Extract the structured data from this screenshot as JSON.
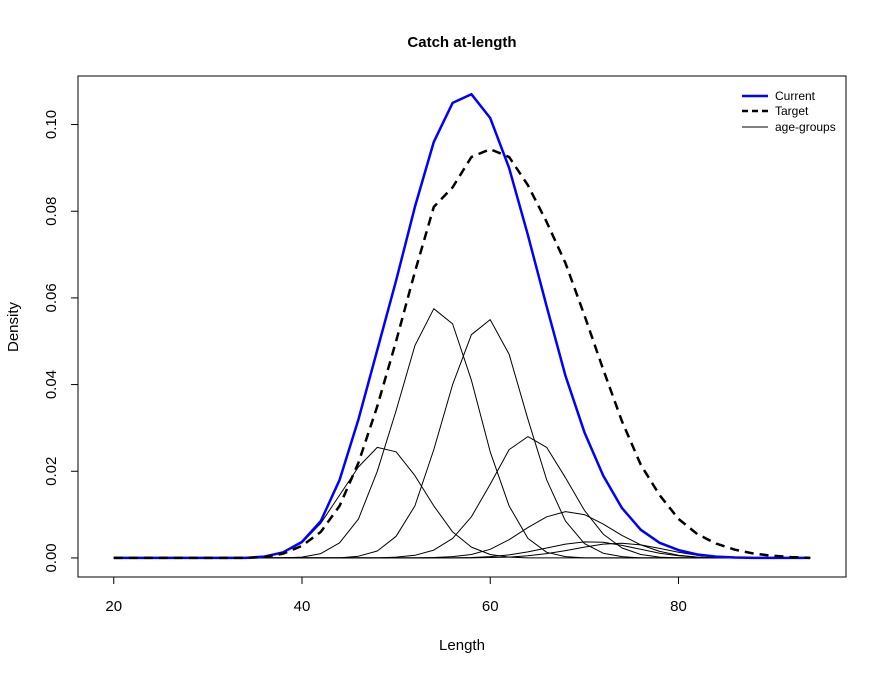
{
  "chart_data": {
    "type": "line",
    "title": "Catch at-length",
    "xlabel": "Length",
    "ylabel": "Density",
    "xlim": [
      16.2,
      97.8
    ],
    "ylim": [
      -0.0044,
      0.1112
    ],
    "x_ticks": [
      20,
      40,
      60,
      80
    ],
    "x_tick_labels": [
      "20",
      "40",
      "60",
      "80"
    ],
    "y_ticks": [
      0.0,
      0.02,
      0.04,
      0.06,
      0.08,
      0.1
    ],
    "y_tick_labels": [
      "0.00",
      "0.02",
      "0.04",
      "0.06",
      "0.08",
      "0.10"
    ],
    "grid": false,
    "legend_position": "top-right",
    "legend": [
      {
        "label": "Current",
        "color": "#0000ff",
        "style": "solid",
        "weight": "thick"
      },
      {
        "label": "Target",
        "color": "#000000",
        "style": "dashed",
        "weight": "thick"
      },
      {
        "label": "age-groups",
        "color": "#000000",
        "style": "solid",
        "weight": "thin"
      }
    ],
    "series": [
      {
        "name": "Current",
        "color": "#0000ff",
        "style": "solid",
        "weight": "thick",
        "x": [
          20,
          22,
          24,
          26,
          28,
          30,
          32,
          34,
          36,
          38,
          40,
          42,
          44,
          46,
          48,
          50,
          52,
          54,
          56,
          58,
          60,
          62,
          64,
          66,
          68,
          70,
          72,
          74,
          76,
          78,
          80,
          82,
          84,
          86,
          88,
          90,
          92,
          94
        ],
        "y": [
          0,
          0,
          0,
          0,
          0,
          0,
          0,
          0,
          0.0003,
          0.0013,
          0.0037,
          0.0085,
          0.018,
          0.032,
          0.048,
          0.064,
          0.081,
          0.096,
          0.105,
          0.107,
          0.1015,
          0.09,
          0.0745,
          0.058,
          0.042,
          0.029,
          0.019,
          0.0115,
          0.0065,
          0.0035,
          0.0018,
          0.0008,
          0.0003,
          0.0001,
          0,
          0,
          0,
          0
        ]
      },
      {
        "name": "Target",
        "color": "#000000",
        "style": "dashed",
        "weight": "thick",
        "x": [
          20,
          22,
          24,
          26,
          28,
          30,
          32,
          34,
          36,
          38,
          40,
          42,
          44,
          46,
          48,
          50,
          52,
          54,
          56,
          58,
          60,
          62,
          64,
          66,
          68,
          70,
          72,
          74,
          76,
          78,
          80,
          82,
          84,
          86,
          88,
          90,
          92,
          94
        ],
        "y": [
          0,
          0,
          0,
          0,
          0,
          0,
          0,
          0,
          0.0002,
          0.001,
          0.0028,
          0.006,
          0.012,
          0.022,
          0.035,
          0.05,
          0.066,
          0.081,
          0.0855,
          0.0925,
          0.0943,
          0.0925,
          0.086,
          0.0775,
          0.068,
          0.056,
          0.0435,
          0.0315,
          0.0215,
          0.0145,
          0.009,
          0.0055,
          0.0033,
          0.0019,
          0.001,
          0.0005,
          0.0002,
          0
        ]
      }
    ],
    "age_groups": [
      {
        "x": [
          20,
          22,
          24,
          26,
          28,
          30,
          32,
          34,
          36,
          38,
          40,
          42,
          44,
          46,
          48,
          50,
          52,
          54,
          56,
          58,
          60,
          62,
          64,
          66,
          68,
          70,
          72,
          74,
          76,
          78,
          80,
          82,
          84,
          86,
          88,
          90,
          92,
          94
        ],
        "y": [
          0,
          0,
          0,
          0,
          0,
          0,
          0,
          0,
          0.0003,
          0.0012,
          0.0035,
          0.008,
          0.0145,
          0.021,
          0.0255,
          0.0245,
          0.019,
          0.012,
          0.006,
          0.0025,
          0.0008,
          0.0002,
          0,
          0,
          0,
          0,
          0,
          0,
          0,
          0,
          0,
          0,
          0,
          0,
          0,
          0,
          0,
          0
        ]
      },
      {
        "x": [
          20,
          22,
          24,
          26,
          28,
          30,
          32,
          34,
          36,
          38,
          40,
          42,
          44,
          46,
          48,
          50,
          52,
          54,
          56,
          58,
          60,
          62,
          64,
          66,
          68,
          70,
          72,
          74,
          76,
          78,
          80,
          82,
          84,
          86,
          88,
          90,
          92,
          94
        ],
        "y": [
          0,
          0,
          0,
          0,
          0,
          0,
          0,
          0,
          0,
          0,
          0.0002,
          0.001,
          0.0035,
          0.009,
          0.02,
          0.034,
          0.049,
          0.0575,
          0.054,
          0.041,
          0.0245,
          0.012,
          0.0045,
          0.0013,
          0.0003,
          0,
          0,
          0,
          0,
          0,
          0,
          0,
          0,
          0,
          0,
          0,
          0,
          0
        ]
      },
      {
        "x": [
          20,
          22,
          24,
          26,
          28,
          30,
          32,
          34,
          36,
          38,
          40,
          42,
          44,
          46,
          48,
          50,
          52,
          54,
          56,
          58,
          60,
          62,
          64,
          66,
          68,
          70,
          72,
          74,
          76,
          78,
          80,
          82,
          84,
          86,
          88,
          90,
          92,
          94
        ],
        "y": [
          0,
          0,
          0,
          0,
          0,
          0,
          0,
          0,
          0,
          0,
          0,
          0,
          0,
          0.0004,
          0.0016,
          0.005,
          0.012,
          0.025,
          0.04,
          0.0515,
          0.055,
          0.047,
          0.032,
          0.018,
          0.0085,
          0.0033,
          0.0011,
          0.0003,
          0,
          0,
          0,
          0,
          0,
          0,
          0,
          0,
          0,
          0
        ]
      },
      {
        "x": [
          20,
          22,
          24,
          26,
          28,
          30,
          32,
          34,
          36,
          38,
          40,
          42,
          44,
          46,
          48,
          50,
          52,
          54,
          56,
          58,
          60,
          62,
          64,
          66,
          68,
          70,
          72,
          74,
          76,
          78,
          80,
          82,
          84,
          86,
          88,
          90,
          92,
          94
        ],
        "y": [
          0,
          0,
          0,
          0,
          0,
          0,
          0,
          0,
          0,
          0,
          0,
          0,
          0,
          0,
          0,
          0.0002,
          0.0006,
          0.0018,
          0.0045,
          0.0095,
          0.017,
          0.025,
          0.028,
          0.0255,
          0.0185,
          0.011,
          0.0055,
          0.0023,
          0.0008,
          0.0002,
          0,
          0,
          0,
          0,
          0,
          0,
          0,
          0
        ]
      },
      {
        "x": [
          20,
          22,
          24,
          26,
          28,
          30,
          32,
          34,
          36,
          38,
          40,
          42,
          44,
          46,
          48,
          50,
          52,
          54,
          56,
          58,
          60,
          62,
          64,
          66,
          68,
          70,
          72,
          74,
          76,
          78,
          80,
          82,
          84,
          86,
          88,
          90,
          92,
          94
        ],
        "y": [
          0,
          0,
          0,
          0,
          0,
          0,
          0,
          0,
          0,
          0,
          0,
          0,
          0,
          0,
          0,
          0,
          0,
          0.0001,
          0.0003,
          0.0008,
          0.002,
          0.0042,
          0.007,
          0.0095,
          0.0107,
          0.01,
          0.0078,
          0.0052,
          0.003,
          0.0015,
          0.0006,
          0.0002,
          0,
          0,
          0,
          0,
          0,
          0
        ]
      },
      {
        "x": [
          20,
          22,
          24,
          26,
          28,
          30,
          32,
          34,
          36,
          38,
          40,
          42,
          44,
          46,
          48,
          50,
          52,
          54,
          56,
          58,
          60,
          62,
          64,
          66,
          68,
          70,
          72,
          74,
          76,
          78,
          80,
          82,
          84,
          86,
          88,
          90,
          92,
          94
        ],
        "y": [
          0,
          0,
          0,
          0,
          0,
          0,
          0,
          0,
          0,
          0,
          0,
          0,
          0,
          0,
          0,
          0,
          0,
          0,
          0,
          0.0001,
          0.0003,
          0.0007,
          0.0014,
          0.0023,
          0.0032,
          0.0037,
          0.0036,
          0.0029,
          0.002,
          0.0011,
          0.0005,
          0.0002,
          0,
          0,
          0,
          0,
          0,
          0
        ]
      },
      {
        "x": [
          20,
          22,
          24,
          26,
          28,
          30,
          32,
          34,
          36,
          38,
          40,
          42,
          44,
          46,
          48,
          50,
          52,
          54,
          56,
          58,
          60,
          62,
          64,
          66,
          68,
          70,
          72,
          74,
          76,
          78,
          80,
          82,
          84,
          86,
          88,
          90,
          92,
          94
        ],
        "y": [
          0,
          0,
          0,
          0,
          0,
          0,
          0,
          0,
          0,
          0,
          0,
          0,
          0,
          0,
          0,
          0,
          0,
          0,
          0,
          0,
          0.0001,
          0.0002,
          0.0005,
          0.001,
          0.0017,
          0.0025,
          0.0032,
          0.0034,
          0.003,
          0.0022,
          0.0013,
          0.0006,
          0.0002,
          0.0001,
          0,
          0,
          0,
          0
        ]
      }
    ]
  }
}
